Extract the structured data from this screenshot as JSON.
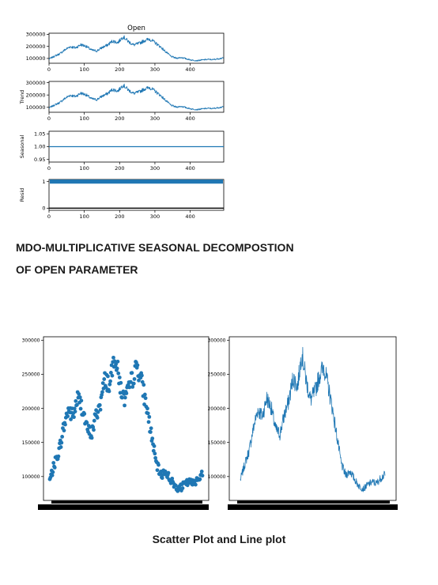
{
  "figure": {
    "caption_line1": "MDO-MULTIPLICATIVE SEASONAL DECOMPOSTION",
    "caption_line2": "OF OPEN PARAMETER",
    "caption_bottom": "Scatter Plot and Line plot"
  },
  "colors": {
    "series": "#1f77b4",
    "axis": "#000000",
    "background": "#ffffff"
  },
  "chart_data": [
    {
      "type": "line",
      "panel": "observed",
      "title": "Open",
      "ylabel": "",
      "xlim": [
        0,
        495
      ],
      "ylim": [
        60000,
        310000
      ],
      "x_ticks": [
        0,
        100,
        200,
        300,
        400
      ],
      "y_ticks": [
        100000,
        200000,
        300000
      ],
      "grid": false,
      "series": [
        {
          "values_ref": "open"
        }
      ]
    },
    {
      "type": "line",
      "panel": "trend",
      "title": "",
      "ylabel": "Trend",
      "xlim": [
        0,
        495
      ],
      "ylim": [
        60000,
        310000
      ],
      "x_ticks": [
        0,
        100,
        200,
        300,
        400
      ],
      "y_ticks": [
        100000,
        200000,
        300000
      ],
      "grid": false,
      "series": [
        {
          "values_ref": "open"
        }
      ]
    },
    {
      "type": "line",
      "panel": "seasonal",
      "title": "",
      "ylabel": "Seasonal",
      "xlim": [
        0,
        495
      ],
      "ylim": [
        0.94,
        1.06
      ],
      "x_ticks": [
        0,
        100,
        200,
        300,
        400
      ],
      "y_ticks": [
        0.95,
        1.0,
        1.05
      ],
      "y_tick_labels": [
        "0.95",
        "1.00",
        "1.05"
      ],
      "grid": false,
      "series": [
        {
          "constant": 1.0
        }
      ]
    },
    {
      "type": "scatter",
      "panel": "resid",
      "title": "",
      "ylabel": "Resid",
      "xlim": [
        0,
        495
      ],
      "ylim": [
        -0.08,
        1.08
      ],
      "x_ticks": [
        0,
        100,
        200,
        300,
        400
      ],
      "y_ticks": [
        0,
        1
      ],
      "grid": false,
      "series": [
        {
          "constant": 1.0
        }
      ]
    },
    {
      "type": "scatter",
      "panel": "scatter",
      "title": "",
      "ylabel": "",
      "ylim": [
        65000,
        305000
      ],
      "y_ticks": [
        100000,
        150000,
        200000,
        250000,
        300000
      ],
      "x_tick_labels_illegible": true,
      "grid": false,
      "series": [
        {
          "values_ref": "open"
        }
      ]
    },
    {
      "type": "line",
      "panel": "lineplot",
      "title": "",
      "ylabel": "",
      "ylim": [
        65000,
        305000
      ],
      "y_ticks": [
        100000,
        150000,
        200000,
        250000,
        300000
      ],
      "x_tick_labels_illegible": true,
      "grid": false,
      "series": [
        {
          "values_ref": "open"
        }
      ]
    }
  ],
  "series_data": {
    "open_anchors": [
      [
        0,
        95000
      ],
      [
        15,
        118000
      ],
      [
        30,
        138000
      ],
      [
        45,
        172000
      ],
      [
        60,
        198000
      ],
      [
        75,
        188000
      ],
      [
        90,
        215000
      ],
      [
        105,
        202000
      ],
      [
        120,
        170000
      ],
      [
        135,
        162000
      ],
      [
        150,
        190000
      ],
      [
        165,
        210000
      ],
      [
        180,
        245000
      ],
      [
        195,
        232000
      ],
      [
        210,
        282000
      ],
      [
        225,
        240000
      ],
      [
        240,
        212000
      ],
      [
        255,
        225000
      ],
      [
        270,
        248000
      ],
      [
        285,
        262000
      ],
      [
        300,
        232000
      ],
      [
        315,
        198000
      ],
      [
        330,
        158000
      ],
      [
        345,
        118000
      ],
      [
        360,
        102000
      ],
      [
        375,
        108000
      ],
      [
        390,
        96000
      ],
      [
        405,
        86000
      ],
      [
        420,
        82000
      ],
      [
        435,
        88000
      ],
      [
        450,
        92000
      ],
      [
        465,
        90000
      ],
      [
        480,
        98000
      ],
      [
        494,
        103000
      ]
    ]
  }
}
